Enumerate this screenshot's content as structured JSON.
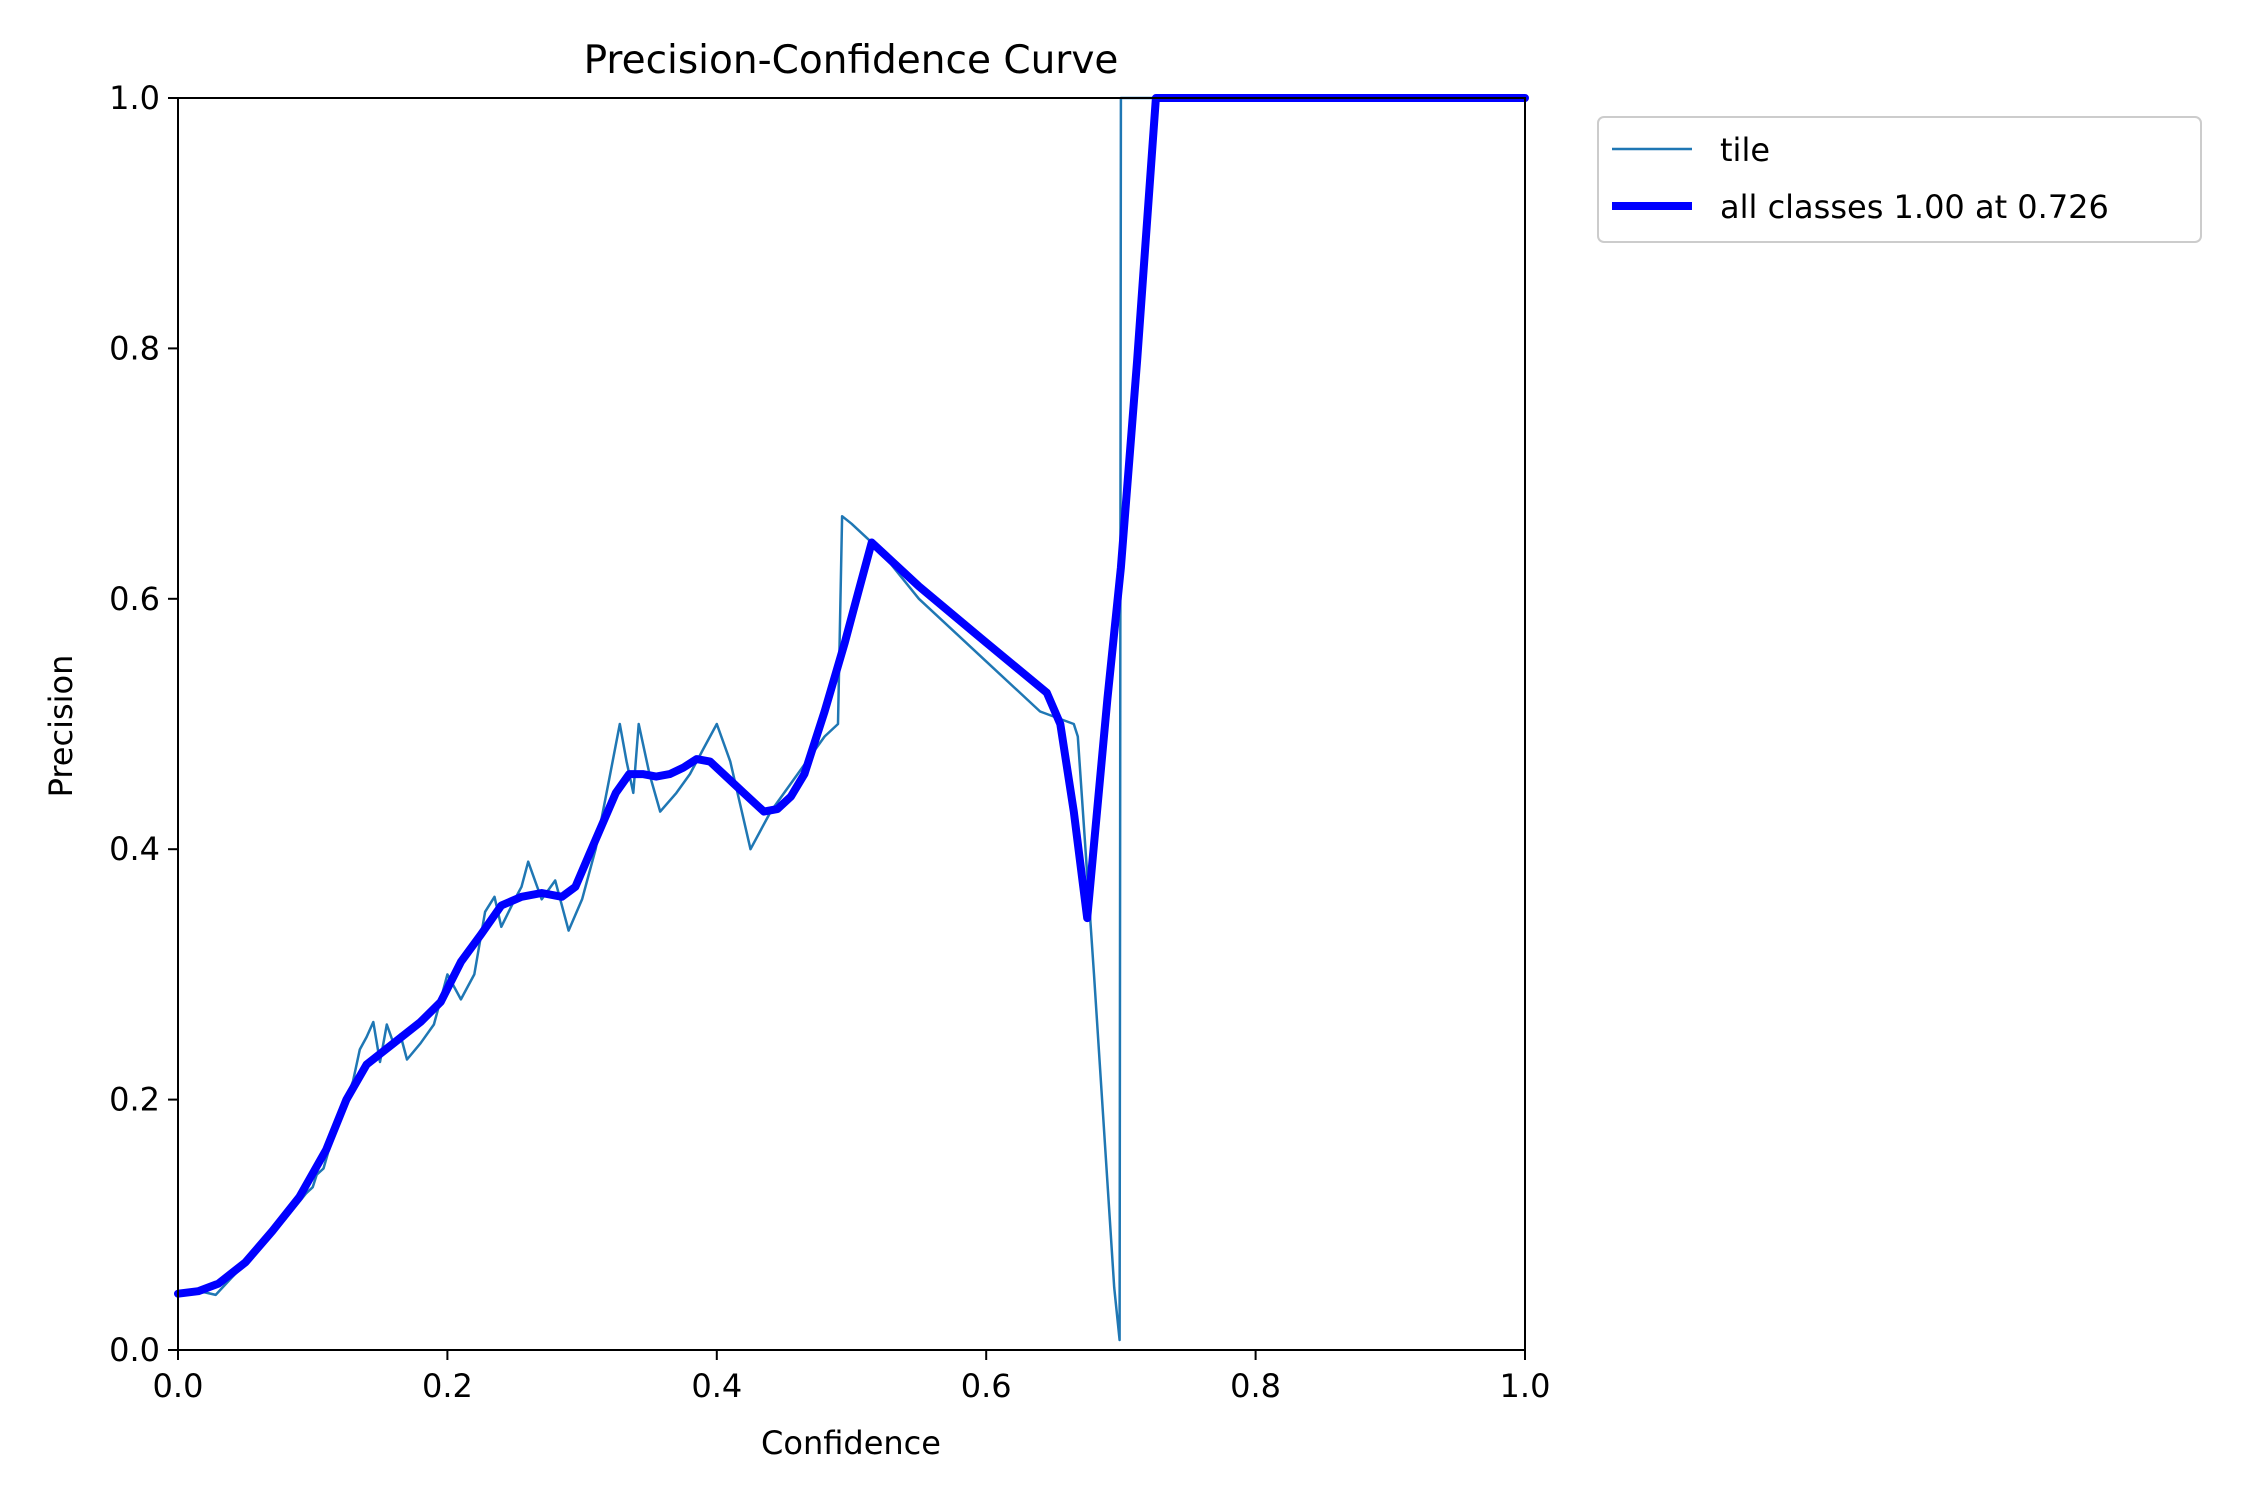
{
  "chart_data": {
    "type": "line",
    "title": "Precision-Confidence Curve",
    "xlabel": "Confidence",
    "ylabel": "Precision",
    "xlim": [
      0,
      1
    ],
    "ylim": [
      0,
      1
    ],
    "xticks": [
      "0.0",
      "0.2",
      "0.4",
      "0.6",
      "0.8",
      "1.0"
    ],
    "yticks": [
      "0.0",
      "0.2",
      "0.4",
      "0.6",
      "0.8",
      "1.0"
    ],
    "grid": false,
    "legend_position": "outside-top-right",
    "series": [
      {
        "name": "tile",
        "color": "#1f77b4",
        "x": [
          0.0,
          0.02,
          0.028,
          0.04,
          0.06,
          0.08,
          0.095,
          0.1,
          0.103,
          0.108,
          0.112,
          0.12,
          0.13,
          0.135,
          0.14,
          0.145,
          0.15,
          0.155,
          0.16,
          0.165,
          0.17,
          0.18,
          0.19,
          0.195,
          0.2,
          0.21,
          0.215,
          0.22,
          0.228,
          0.235,
          0.24,
          0.25,
          0.255,
          0.26,
          0.27,
          0.28,
          0.29,
          0.3,
          0.31,
          0.32,
          0.328,
          0.333,
          0.338,
          0.342,
          0.35,
          0.358,
          0.37,
          0.38,
          0.39,
          0.4,
          0.41,
          0.425,
          0.44,
          0.46,
          0.48,
          0.49,
          0.493,
          0.5,
          0.52,
          0.55,
          0.6,
          0.64,
          0.665,
          0.668,
          0.68,
          0.695,
          0.699,
          0.7,
          0.701,
          0.73,
          0.8,
          0.9,
          1.0
        ],
        "y": [
          0.046,
          0.046,
          0.044,
          0.058,
          0.08,
          0.105,
          0.125,
          0.13,
          0.14,
          0.145,
          0.16,
          0.185,
          0.215,
          0.24,
          0.25,
          0.262,
          0.23,
          0.26,
          0.245,
          0.252,
          0.232,
          0.245,
          0.26,
          0.28,
          0.3,
          0.28,
          0.29,
          0.3,
          0.35,
          0.362,
          0.338,
          0.36,
          0.37,
          0.39,
          0.36,
          0.375,
          0.335,
          0.36,
          0.4,
          0.455,
          0.5,
          0.47,
          0.445,
          0.5,
          0.46,
          0.43,
          0.445,
          0.46,
          0.48,
          0.5,
          0.47,
          0.4,
          0.43,
          0.46,
          0.49,
          0.5,
          0.666,
          0.66,
          0.64,
          0.6,
          0.55,
          0.51,
          0.5,
          0.49,
          0.3,
          0.05,
          0.008,
          1.0,
          1.0,
          1.0,
          1.0,
          1.0,
          1.0
        ]
      },
      {
        "name": "all classes 1.00 at 0.726",
        "color": "#0000ff",
        "x": [
          0.0,
          0.015,
          0.03,
          0.05,
          0.07,
          0.09,
          0.11,
          0.125,
          0.14,
          0.16,
          0.18,
          0.195,
          0.21,
          0.225,
          0.24,
          0.255,
          0.27,
          0.285,
          0.295,
          0.305,
          0.315,
          0.325,
          0.335,
          0.345,
          0.355,
          0.365,
          0.375,
          0.385,
          0.395,
          0.405,
          0.42,
          0.435,
          0.445,
          0.455,
          0.465,
          0.48,
          0.495,
          0.505,
          0.515,
          0.55,
          0.6,
          0.645,
          0.655,
          0.665,
          0.675,
          0.69,
          0.7,
          0.712,
          0.726,
          0.8,
          0.9,
          1.0
        ],
        "y": [
          0.045,
          0.047,
          0.053,
          0.07,
          0.095,
          0.122,
          0.16,
          0.2,
          0.228,
          0.245,
          0.262,
          0.278,
          0.31,
          0.332,
          0.355,
          0.362,
          0.365,
          0.362,
          0.37,
          0.395,
          0.42,
          0.445,
          0.46,
          0.46,
          0.458,
          0.46,
          0.465,
          0.472,
          0.47,
          0.46,
          0.445,
          0.43,
          0.432,
          0.442,
          0.46,
          0.51,
          0.565,
          0.605,
          0.645,
          0.61,
          0.565,
          0.525,
          0.5,
          0.43,
          0.345,
          0.52,
          0.625,
          0.79,
          1.0,
          1.0,
          1.0,
          1.0
        ]
      }
    ]
  }
}
